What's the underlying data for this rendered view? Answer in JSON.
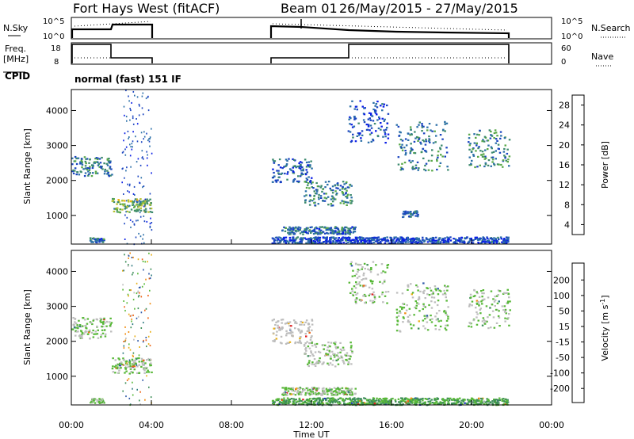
{
  "header": {
    "title": "Fort Hays West (fitACF)",
    "beam": "Beam 01",
    "date_range": "26/May/2015 - 27/May/2015",
    "mode": "normal (fast) 151 IF"
  },
  "small_panels": {
    "nsky": {
      "label": "N.Sky",
      "ticks": [
        "10^5",
        "10^0"
      ],
      "right_label": "N.Search",
      "right_ticks": [
        "10^5",
        "10^0"
      ]
    },
    "freq": {
      "label": "Freq.",
      "unit": "[MHz]",
      "ticks": [
        "18",
        "8"
      ],
      "right_label": "Nave",
      "right_ticks": [
        "60",
        "0"
      ]
    },
    "cpid_label": "CPID"
  },
  "colorbars": {
    "power": {
      "label": "Power [dB]",
      "ticks": [
        "4",
        "8",
        "12",
        "16",
        "20",
        "24",
        "28"
      ],
      "colors": [
        "#0a1ee6",
        "#1a44c0",
        "#2b6fa8",
        "#3d8a6e",
        "#58a848",
        "#b8c232",
        "#f2b010",
        "#f07818",
        "#e84a1e",
        "#e41a1a"
      ]
    },
    "velocity": {
      "label": "Velocity [m s",
      "label_sup": "-1",
      "label_end": "]",
      "ticks": [
        "200",
        "100",
        "50",
        "15",
        "-15",
        "-50",
        "-100",
        "-200"
      ],
      "colors": [
        "#2038b8",
        "#2e58a8",
        "#2e7a80",
        "#3e8e58",
        "#58b838",
        "#bdbdbd",
        "#e8b018",
        "#f08c10",
        "#ee6414",
        "#e02020"
      ]
    }
  },
  "chart_data": [
    {
      "type": "heatmap",
      "name": "power",
      "xlabel": "Time UT",
      "ylabel": "Slant Range [km]",
      "xlim": [
        0,
        24
      ],
      "ylim": [
        180,
        4600
      ],
      "xticks": [
        "00:00",
        "04:00",
        "08:00",
        "12:00",
        "16:00",
        "20:00",
        "00:00"
      ],
      "yticks": [
        1000,
        2000,
        3000,
        4000
      ],
      "cbar_range": [
        2,
        30
      ],
      "regions": [
        {
          "t": [
            0.0,
            2.0
          ],
          "r": [
            2150,
            2700
          ],
          "v": 10
        },
        {
          "t": [
            2.0,
            4.0
          ],
          "r": [
            1100,
            1500
          ],
          "v": 15
        },
        {
          "t": [
            0.9,
            1.6
          ],
          "r": [
            250,
            380
          ],
          "v": 9
        },
        {
          "t": [
            10.0,
            12.0
          ],
          "r": [
            1950,
            2650
          ],
          "v": 8
        },
        {
          "t": [
            11.6,
            14.0
          ],
          "r": [
            1300,
            2000
          ],
          "v": 11
        },
        {
          "t": [
            10.5,
            14.2
          ],
          "r": [
            480,
            700
          ],
          "v": 9
        },
        {
          "t": [
            13.8,
            15.8
          ],
          "r": [
            3100,
            4300
          ],
          "v": 6
        },
        {
          "t": [
            16.2,
            18.8
          ],
          "r": [
            2300,
            3700
          ],
          "v": 10
        },
        {
          "t": [
            19.8,
            21.9
          ],
          "r": [
            2400,
            3500
          ],
          "v": 11
        },
        {
          "t": [
            10.0,
            21.8
          ],
          "r": [
            220,
            400
          ],
          "v": 6
        },
        {
          "t": [
            16.5,
            17.3
          ],
          "r": [
            950,
            1150
          ],
          "v": 8
        }
      ]
    },
    {
      "type": "heatmap",
      "name": "velocity",
      "xlabel": "Time UT",
      "ylabel": "Slant Range [km]",
      "xlim": [
        0,
        24
      ],
      "ylim": [
        180,
        4600
      ],
      "xticks": [
        "00:00",
        "04:00",
        "08:00",
        "12:00",
        "16:00",
        "20:00",
        "00:00"
      ],
      "yticks": [
        1000,
        2000,
        3000,
        4000
      ],
      "cbar_range": [
        -200,
        200
      ],
      "regions": [
        {
          "t": [
            0.0,
            2.0
          ],
          "r": [
            2100,
            2700
          ],
          "v": 0
        },
        {
          "t": [
            2.0,
            4.0
          ],
          "r": [
            1100,
            1550
          ],
          "v": 0
        },
        {
          "t": [
            0.9,
            1.6
          ],
          "r": [
            250,
            380
          ],
          "v": 0
        },
        {
          "t": [
            10.0,
            12.0
          ],
          "r": [
            1950,
            2650
          ],
          "v": 25
        },
        {
          "t": [
            11.6,
            14.0
          ],
          "r": [
            1300,
            2000
          ],
          "v": 5
        },
        {
          "t": [
            10.5,
            14.2
          ],
          "r": [
            480,
            700
          ],
          "v": 0
        },
        {
          "t": [
            13.8,
            15.8
          ],
          "r": [
            3100,
            4300
          ],
          "v": 0
        },
        {
          "t": [
            16.2,
            18.8
          ],
          "r": [
            2300,
            3700
          ],
          "v": 0
        },
        {
          "t": [
            19.8,
            21.9
          ],
          "r": [
            2400,
            3500
          ],
          "v": 0
        },
        {
          "t": [
            10.0,
            21.8
          ],
          "r": [
            200,
            400
          ],
          "v": -40
        }
      ]
    }
  ]
}
